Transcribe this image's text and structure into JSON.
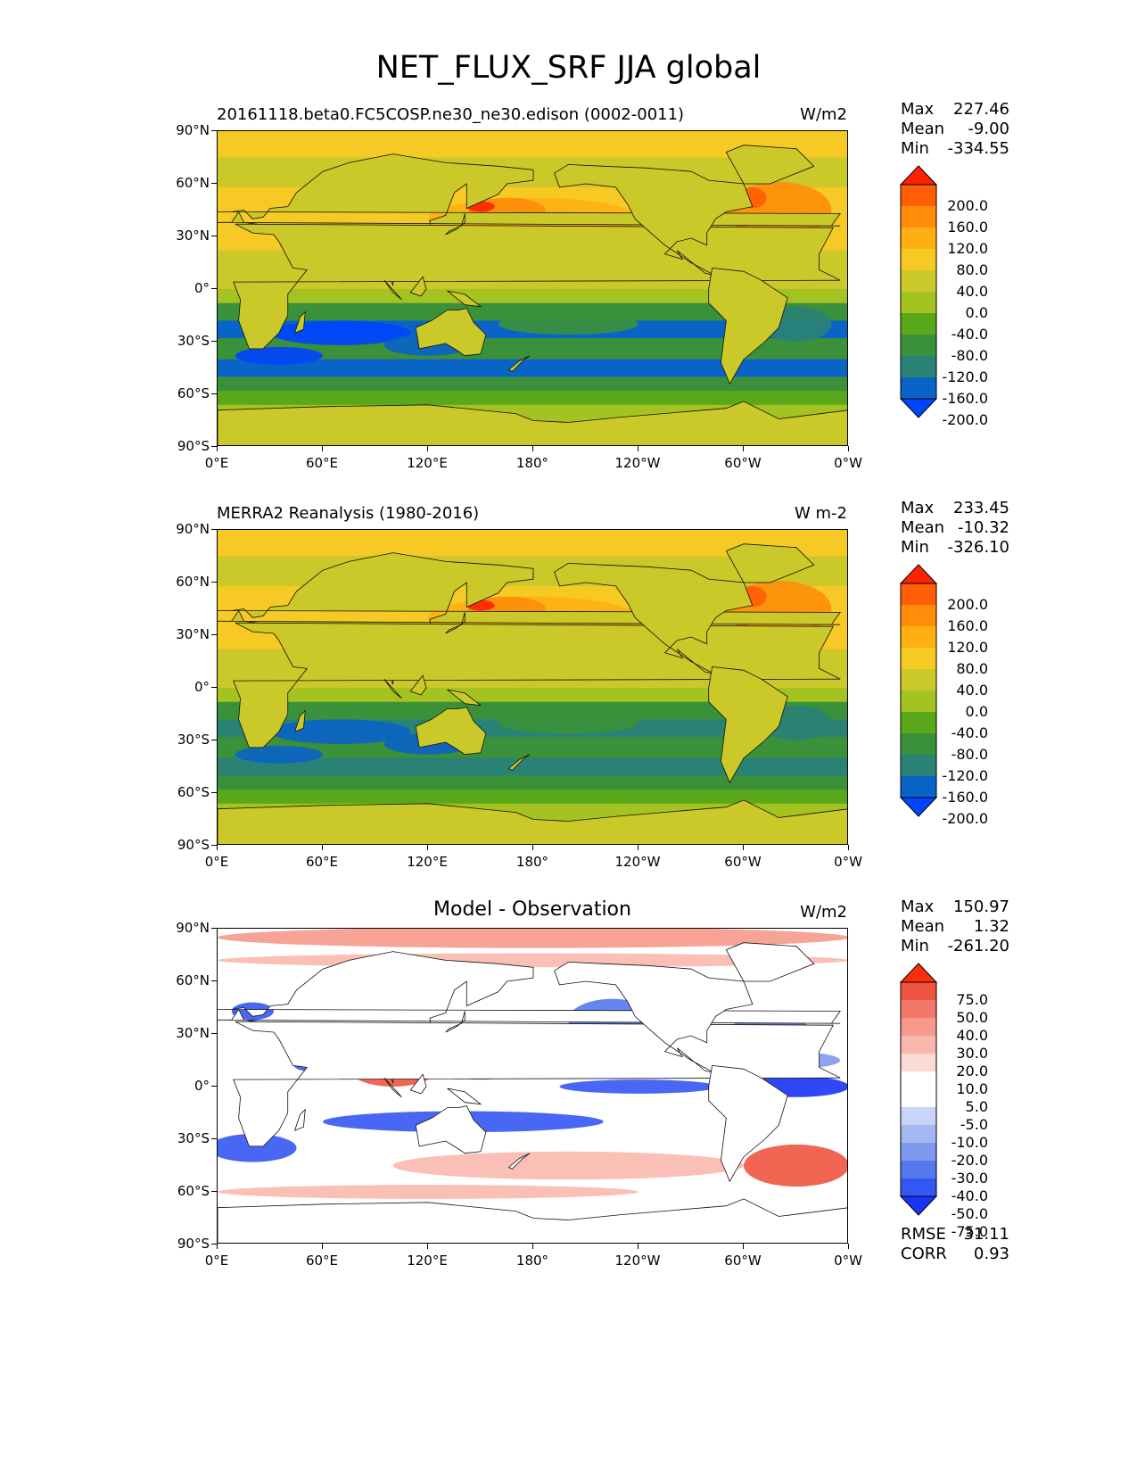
{
  "figure_title": "NET_FLUX_SRF JJA global",
  "lat_ticks": [
    "90°N",
    "60°N",
    "30°N",
    "0°",
    "30°S",
    "60°S",
    "90°S"
  ],
  "lon_ticks": [
    "0°E",
    "60°E",
    "120°E",
    "180°",
    "120°W",
    "60°W",
    "0°W"
  ],
  "colors": {
    "abs_palette": [
      "#0044ff",
      "#0a63c6",
      "#2a8276",
      "#3a913a",
      "#5aa81a",
      "#a4c220",
      "#cbc829",
      "#f6c925",
      "#ffaf12",
      "#ff8d0a",
      "#ff5e06",
      "#ff2200"
    ],
    "diff_palette": [
      "#1734f7",
      "#3357f3",
      "#5678ef",
      "#7e99ee",
      "#a3b7f1",
      "#c9d5f7",
      "#ffffff",
      "#ffffff",
      "#fbdad4",
      "#f9b8ad",
      "#f6998b",
      "#f2786a",
      "#ef5440",
      "#fa2f09"
    ]
  },
  "panels": [
    {
      "title": "20161118.beta0.FC5COSP.ne30_ne30.edison (0002-0011)",
      "units": "W/m2",
      "stats": [
        {
          "label": "Max",
          "value": "227.46"
        },
        {
          "label": "Mean",
          "value": "-9.00"
        },
        {
          "label": "Min",
          "value": "-334.55"
        }
      ],
      "colorbar_labels": [
        "200.0",
        "160.0",
        "120.0",
        "80.0",
        "40.0",
        "0.0",
        "-40.0",
        "-80.0",
        "-120.0",
        "-160.0",
        "-200.0"
      ]
    },
    {
      "title": "MERRA2 Reanalysis (1980-2016)",
      "units": "W m-2",
      "stats": [
        {
          "label": "Max",
          "value": "233.45"
        },
        {
          "label": "Mean",
          "value": "-10.32"
        },
        {
          "label": "Min",
          "value": "-326.10"
        }
      ],
      "colorbar_labels": [
        "200.0",
        "160.0",
        "120.0",
        "80.0",
        "40.0",
        "0.0",
        "-40.0",
        "-80.0",
        "-120.0",
        "-160.0",
        "-200.0"
      ]
    },
    {
      "title": "Model - Observation",
      "units": "W/m2",
      "stats": [
        {
          "label": "Max",
          "value": "150.97"
        },
        {
          "label": "Mean",
          "value": "1.32"
        },
        {
          "label": "Min",
          "value": "-261.20"
        }
      ],
      "colorbar_labels": [
        "75.0",
        "50.0",
        "40.0",
        "30.0",
        "20.0",
        "10.0",
        "5.0",
        "-5.0",
        "-10.0",
        "-20.0",
        "-30.0",
        "-40.0",
        "-50.0",
        "-75.0"
      ],
      "extra_stats": [
        {
          "label": "RMSE",
          "value": "31.11"
        },
        {
          "label": "CORR",
          "value": "0.93"
        }
      ]
    }
  ],
  "chart_data": [
    {
      "type": "heatmap",
      "title": "20161118.beta0.FC5COSP.ne30_ne30.edison (0002-0011)",
      "units": "W/m2",
      "xlim": [
        0,
        360
      ],
      "ylim": [
        -90,
        90
      ],
      "grid": false,
      "levels": [
        -200,
        -160,
        -120,
        -80,
        -40,
        0,
        40,
        80,
        120,
        160,
        200
      ],
      "stats": {
        "max": 227.46,
        "mean": -9.0,
        "min": -334.55
      }
    },
    {
      "type": "heatmap",
      "title": "MERRA2 Reanalysis (1980-2016)",
      "units": "W m-2",
      "xlim": [
        0,
        360
      ],
      "ylim": [
        -90,
        90
      ],
      "grid": false,
      "levels": [
        -200,
        -160,
        -120,
        -80,
        -40,
        0,
        40,
        80,
        120,
        160,
        200
      ],
      "stats": {
        "max": 233.45,
        "mean": -10.32,
        "min": -326.1
      }
    },
    {
      "type": "heatmap",
      "title": "Model - Observation",
      "units": "W/m2",
      "xlim": [
        0,
        360
      ],
      "ylim": [
        -90,
        90
      ],
      "grid": false,
      "levels": [
        -75,
        -50,
        -40,
        -30,
        -20,
        -10,
        -5,
        5,
        10,
        20,
        30,
        40,
        50,
        75
      ],
      "stats": {
        "max": 150.97,
        "mean": 1.32,
        "min": -261.2,
        "rmse": 31.11,
        "corr": 0.93
      }
    }
  ]
}
